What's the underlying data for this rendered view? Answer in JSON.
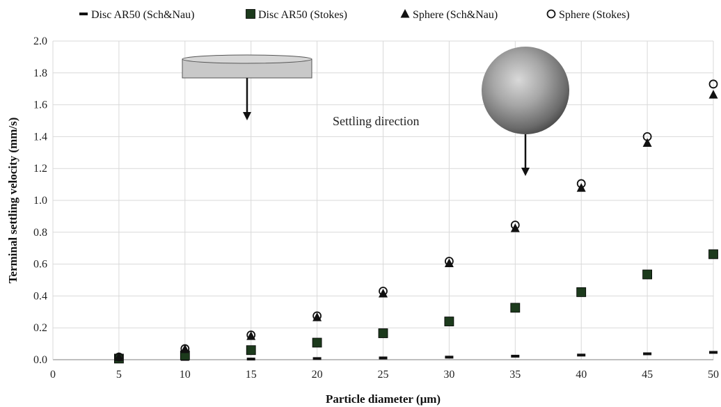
{
  "chart_data": {
    "type": "scatter",
    "title": "",
    "xlabel": "Particle diameter (μm)",
    "ylabel": "Terminal settling velocity (mm/s)",
    "xlim": [
      0,
      50
    ],
    "ylim": [
      0,
      2.0
    ],
    "x_ticks": [
      "0",
      "5",
      "10",
      "15",
      "20",
      "25",
      "30",
      "35",
      "40",
      "45",
      "50"
    ],
    "y_ticks": [
      "0.0",
      "0.2",
      "0.4",
      "0.6",
      "0.8",
      "1.0",
      "1.2",
      "1.4",
      "1.6",
      "1.8",
      "2.0"
    ],
    "grid": true,
    "legend_position": "top",
    "x": [
      5,
      10,
      15,
      20,
      25,
      30,
      35,
      40,
      45,
      50
    ],
    "series": [
      {
        "name": "Disc AR50 (Sch&Nau)",
        "marker": "dash",
        "color": "#111111",
        "values": [
          0.0005,
          0.002,
          0.004,
          0.007,
          0.011,
          0.016,
          0.022,
          0.029,
          0.037,
          0.046
        ]
      },
      {
        "name": "Disc AR50 (Stokes)",
        "marker": "square",
        "color": "#1c3a1c",
        "values": [
          0.007,
          0.027,
          0.06,
          0.107,
          0.166,
          0.24,
          0.326,
          0.424,
          0.535,
          0.662
        ]
      },
      {
        "name": "Sphere (Sch&Nau)",
        "marker": "triangle",
        "color": "#111111",
        "values": [
          0.017,
          0.066,
          0.148,
          0.266,
          0.415,
          0.605,
          0.825,
          1.078,
          1.36,
          1.663
        ]
      },
      {
        "name": "Sphere (Stokes)",
        "marker": "circle-open",
        "color": "#111111",
        "values": [
          0.017,
          0.069,
          0.155,
          0.275,
          0.43,
          0.618,
          0.845,
          1.105,
          1.4,
          1.73
        ]
      }
    ],
    "annotations": {
      "settling_label": "Settling direction"
    }
  }
}
